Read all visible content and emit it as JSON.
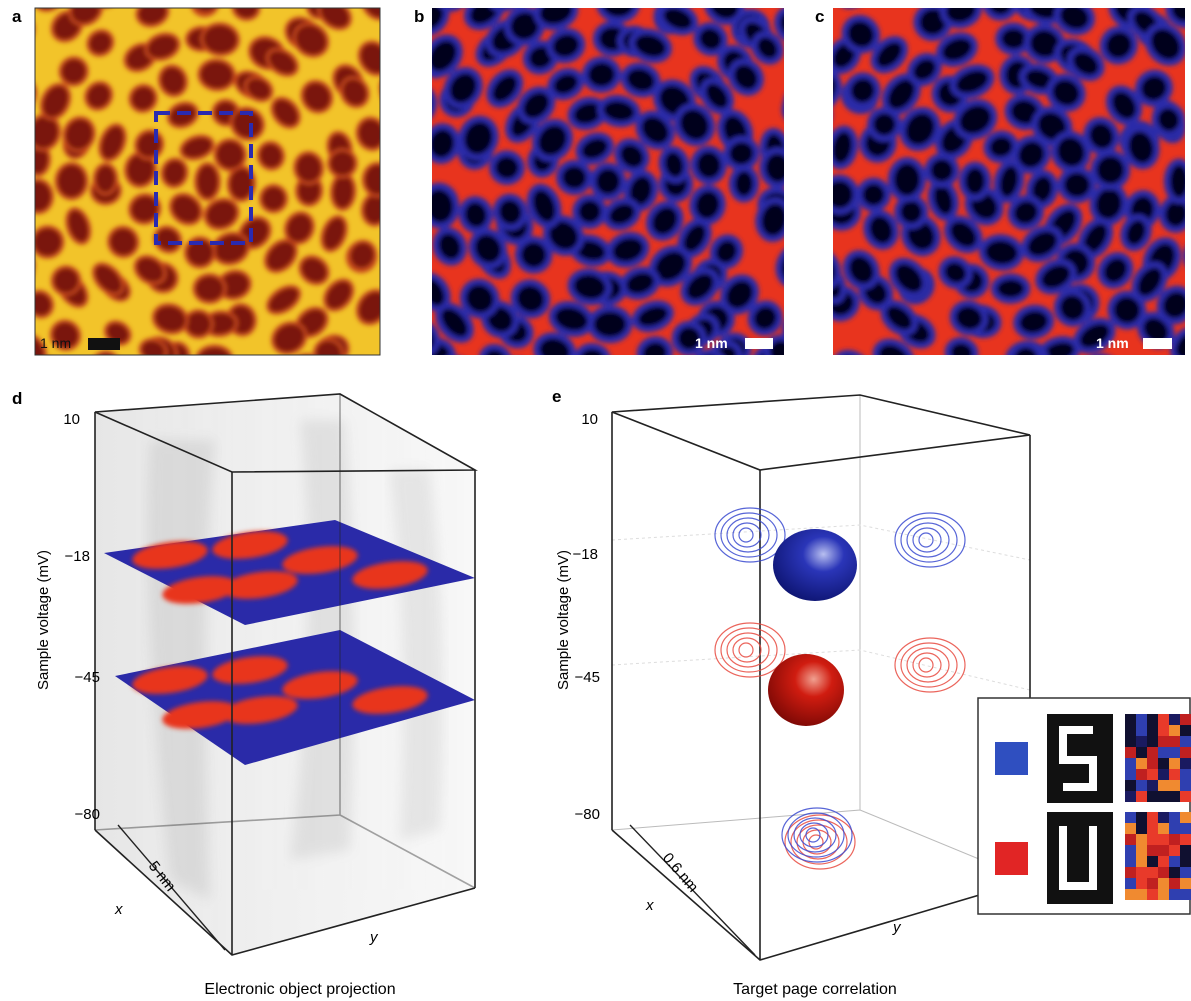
{
  "panels": {
    "a": {
      "label": "a",
      "scale_bar": "1 nm"
    },
    "b": {
      "label": "b",
      "scale_bar": "1 nm"
    },
    "c": {
      "label": "c",
      "scale_bar": "1 nm"
    },
    "d": {
      "label": "d",
      "y_ticks": [
        "10",
        "−18",
        "−45",
        "−80"
      ],
      "y_title": "Sample voltage (mV)",
      "x_axis": "x",
      "x_scale": "5 nm",
      "y_axis": "y",
      "caption": "Electronic object projection"
    },
    "e": {
      "label": "e",
      "y_ticks": [
        "10",
        "−18",
        "−45",
        "−80"
      ],
      "y_title": "Sample voltage (mV)",
      "x_axis": "x",
      "x_scale": "0.6 nm",
      "y_axis": "y",
      "caption": "Target page correlation"
    }
  }
}
